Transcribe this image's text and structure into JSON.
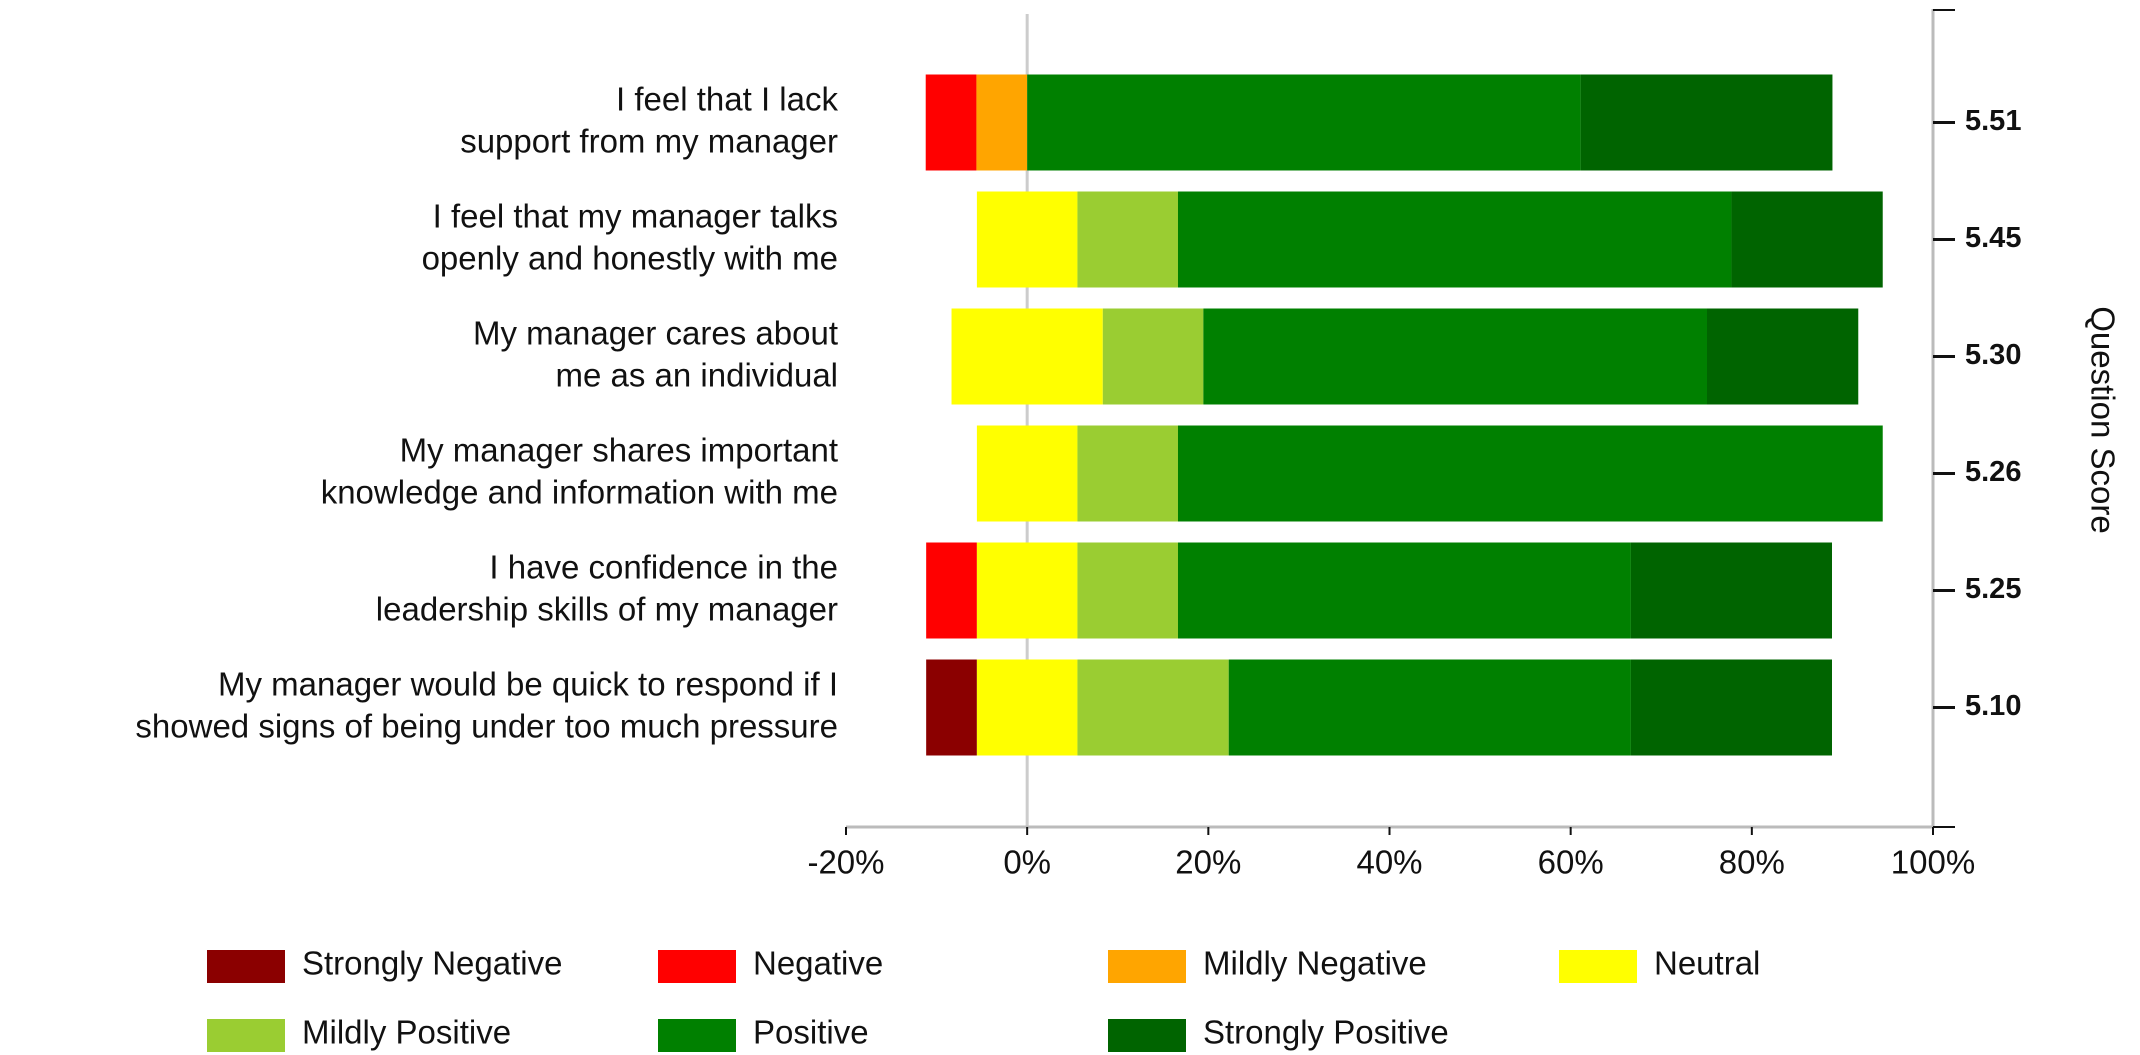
{
  "chart_data": {
    "type": "diverging_bar",
    "categories": [
      [
        "I feel that I lack",
        "support from my manager"
      ],
      [
        "I feel that my manager talks",
        "openly and honestly with me"
      ],
      [
        "My manager cares about",
        "me as an individual"
      ],
      [
        "My manager shares important",
        "knowledge and information with me"
      ],
      [
        "I have confidence in the",
        "leadership skills of my manager"
      ],
      [
        "My manager would be quick to respond if I",
        "showed signs of being under too much pressure"
      ]
    ],
    "scores": [
      "5.51",
      "5.45",
      "5.30",
      "5.26",
      "5.25",
      "5.10"
    ],
    "y2_label": "Question Score",
    "series": [
      {
        "name": "Strongly Negative",
        "color": "#8b0000",
        "side": "negative",
        "values": [
          0,
          0,
          0,
          0,
          0,
          5.6
        ]
      },
      {
        "name": "Negative",
        "color": "#ff0000",
        "side": "negative",
        "values": [
          5.6,
          0,
          0,
          0,
          5.6,
          0
        ]
      },
      {
        "name": "Mildly Negative",
        "color": "#ffa500",
        "side": "negative",
        "values": [
          5.6,
          0,
          0,
          0,
          0,
          0
        ]
      },
      {
        "name": "Neutral",
        "color": "#ffff00",
        "side": "neutral",
        "values": [
          0,
          11.1,
          16.7,
          11.1,
          11.1,
          11.1
        ]
      },
      {
        "name": "Mildly Positive",
        "color": "#9acd32",
        "side": "positive",
        "values": [
          0,
          11.1,
          11.1,
          11.1,
          11.1,
          16.7
        ]
      },
      {
        "name": "Positive",
        "color": "#008000",
        "side": "positive",
        "values": [
          61.1,
          61.1,
          55.6,
          77.8,
          50.0,
          44.4
        ]
      },
      {
        "name": "Strongly Positive",
        "color": "#006400",
        "side": "positive",
        "values": [
          27.8,
          16.7,
          16.7,
          0,
          22.2,
          22.2
        ]
      }
    ],
    "xlim": [
      -20,
      100
    ],
    "xticks": [
      {
        "value": -20,
        "label": "-20%"
      },
      {
        "value": 0,
        "label": "0%"
      },
      {
        "value": 20,
        "label": "20%"
      },
      {
        "value": 40,
        "label": "40%"
      },
      {
        "value": 60,
        "label": "60%"
      },
      {
        "value": 80,
        "label": "80%"
      },
      {
        "value": 100,
        "label": "100%"
      }
    ]
  }
}
